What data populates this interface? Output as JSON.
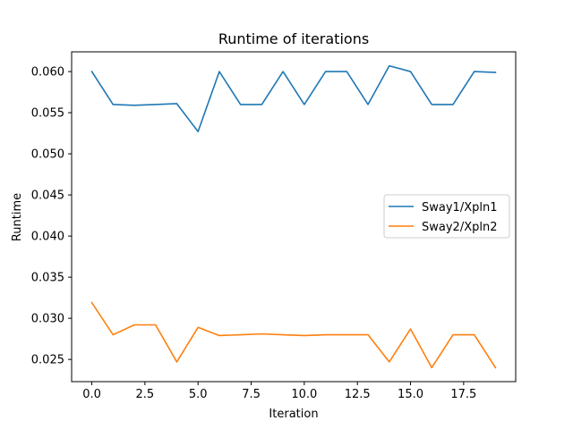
{
  "chart_data": {
    "type": "line",
    "title": "Runtime of iterations",
    "xlabel": "Iteration",
    "ylabel": "Runtime",
    "x": [
      0,
      1,
      2,
      3,
      4,
      5,
      6,
      7,
      8,
      9,
      10,
      11,
      12,
      13,
      14,
      15,
      16,
      17,
      18,
      19
    ],
    "xlim": [
      -0.95,
      19.95
    ],
    "ylim": [
      0.0223,
      0.0624
    ],
    "xticks": [
      0.0,
      2.5,
      5.0,
      7.5,
      10.0,
      12.5,
      15.0,
      17.5
    ],
    "xtick_labels": [
      "0.0",
      "2.5",
      "5.0",
      "7.5",
      "10.0",
      "12.5",
      "15.0",
      "17.5"
    ],
    "yticks": [
      0.025,
      0.03,
      0.035,
      0.04,
      0.045,
      0.05,
      0.055,
      0.06
    ],
    "ytick_labels": [
      "0.025",
      "0.030",
      "0.035",
      "0.040",
      "0.045",
      "0.050",
      "0.055",
      "0.060"
    ],
    "grid": false,
    "legend_position": "center-right",
    "series": [
      {
        "name": "Sway1/Xpln1",
        "color": "#1f77b4",
        "values": [
          0.06,
          0.056,
          0.0559,
          0.056,
          0.0561,
          0.0527,
          0.06,
          0.056,
          0.056,
          0.06,
          0.056,
          0.06,
          0.06,
          0.056,
          0.0607,
          0.06,
          0.056,
          0.056,
          0.06,
          0.0599
        ]
      },
      {
        "name": "Sway2/Xpln2",
        "color": "#ff7f0e",
        "values": [
          0.0319,
          0.028,
          0.0292,
          0.0292,
          0.0247,
          0.0289,
          0.0279,
          0.028,
          0.0281,
          0.028,
          0.0279,
          0.028,
          0.028,
          0.028,
          0.0247,
          0.0287,
          0.024,
          0.028,
          0.028,
          0.024
        ]
      }
    ]
  }
}
